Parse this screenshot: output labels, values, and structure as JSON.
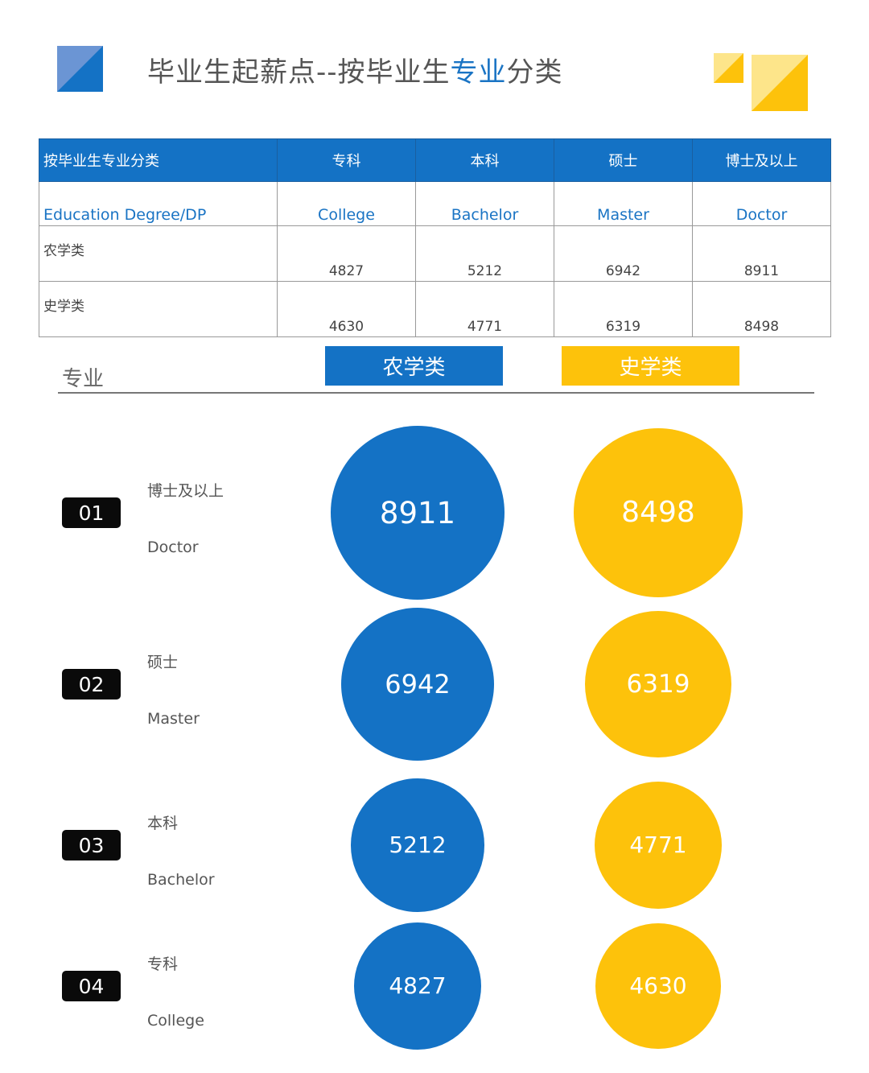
{
  "title": {
    "prefix": "毕业生起薪点--按毕业生",
    "highlight": "专业",
    "suffix": "分类"
  },
  "colors": {
    "blue": "#1472c5",
    "yellow": "#fdc20b",
    "badge": "#0a0a0a"
  },
  "table": {
    "headers": [
      "按毕业生专业分类",
      "专科",
      "本科",
      "硕士",
      "博士及以上"
    ],
    "english_row": [
      "Education Degree/DP",
      "College",
      "Bachelor",
      "Master",
      "Doctor"
    ],
    "rows": [
      {
        "label": "农学类",
        "values": [
          "4827",
          "5212",
          "6942",
          "8911"
        ]
      },
      {
        "label": "史学类",
        "values": [
          "4630",
          "4771",
          "6319",
          "8498"
        ]
      }
    ]
  },
  "legend": {
    "major": "专业",
    "series": [
      "农学类",
      "史学类"
    ]
  },
  "chart_data": {
    "type": "bubble",
    "categories": [
      "博士及以上",
      "硕士",
      "本科",
      "专科"
    ],
    "categories_en": [
      "Doctor",
      "Master",
      "Bachelor",
      "College"
    ],
    "ranks": [
      "01",
      "02",
      "03",
      "04"
    ],
    "series": [
      {
        "name": "农学类",
        "values": [
          8911,
          6942,
          5212,
          4827
        ]
      },
      {
        "name": "史学类",
        "values": [
          8498,
          6319,
          4771,
          4630
        ]
      }
    ]
  }
}
